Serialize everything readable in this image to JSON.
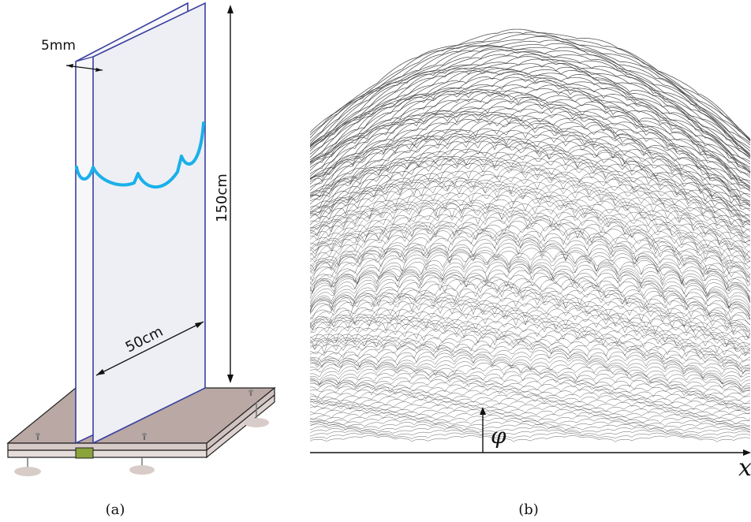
{
  "panel_a": {
    "dim_gap": "5mm",
    "dim_width": "50cm",
    "dim_height": "150cm",
    "caption": "(a)"
  },
  "panel_b": {
    "axis_x_label": "x",
    "height_label": "φ",
    "caption": "(b)"
  },
  "colors": {
    "front_pane": "#eeeff4",
    "pane_edge": "#3a3f9e",
    "front_line": "#1ab0ea",
    "base_plate": "#b9a8a4",
    "base_edge": "#222222",
    "foot": "#d8ccc8",
    "slot_insert": "#8aa33a",
    "stack_line": "#2a2a2a"
  }
}
